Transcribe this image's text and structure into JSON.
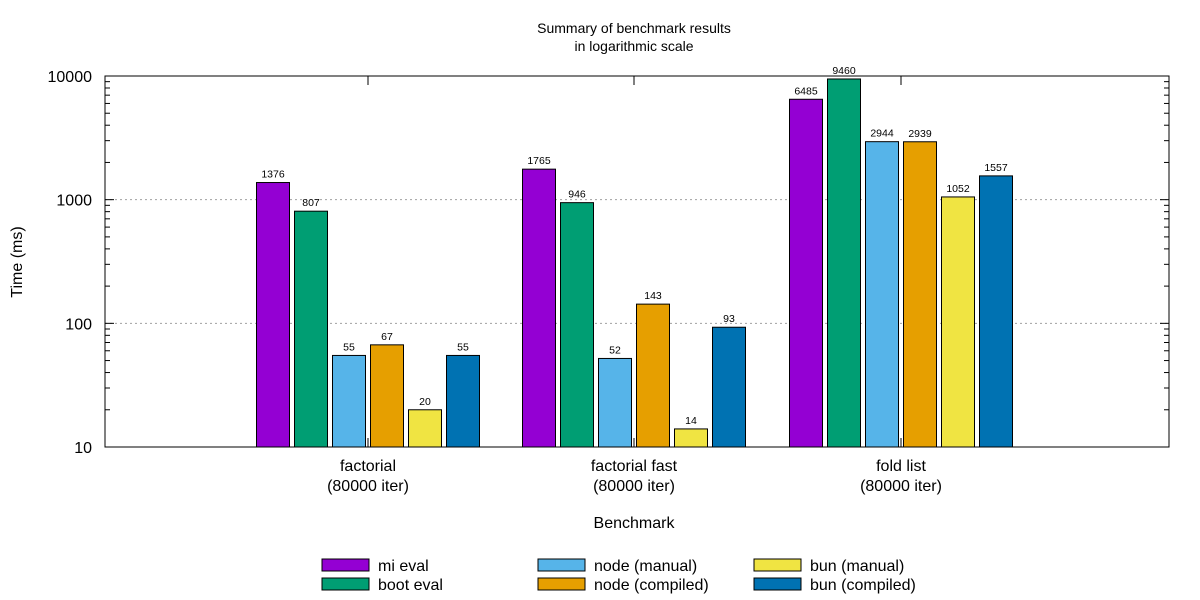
{
  "chart_data": {
    "type": "bar",
    "title": [
      "Summary of benchmark results",
      "in logarithmic scale"
    ],
    "xlabel": "Benchmark",
    "ylabel": "Time (ms)",
    "yscale": "log",
    "ylim": [
      10,
      10000
    ],
    "yticks": [
      {
        "value": 10,
        "label": "10"
      },
      {
        "value": 100,
        "label": "100"
      },
      {
        "value": 1000,
        "label": "1000"
      },
      {
        "value": 10000,
        "label": "10000"
      }
    ],
    "grid": "horizontal dotted",
    "legend_position": "bottom",
    "categories": [
      [
        "factorial",
        "(80000 iter)"
      ],
      [
        "factorial fast",
        "(80000 iter)"
      ],
      [
        "fold list",
        "(80000 iter)"
      ]
    ],
    "series": [
      {
        "name": "mi eval",
        "color": "#9400d3",
        "values": [
          1376,
          1765,
          6485
        ]
      },
      {
        "name": "boot eval",
        "color": "#009e73",
        "values": [
          807,
          946,
          9460
        ]
      },
      {
        "name": "node (manual)",
        "color": "#56b4e9",
        "values": [
          55,
          52,
          2944
        ]
      },
      {
        "name": "node (compiled)",
        "color": "#e69f00",
        "values": [
          67,
          143,
          2939
        ]
      },
      {
        "name": "bun (manual)",
        "color": "#f0e442",
        "values": [
          20,
          14,
          1052
        ]
      },
      {
        "name": "bun (compiled)",
        "color": "#0072b2",
        "values": [
          55,
          93,
          1557
        ]
      }
    ]
  }
}
